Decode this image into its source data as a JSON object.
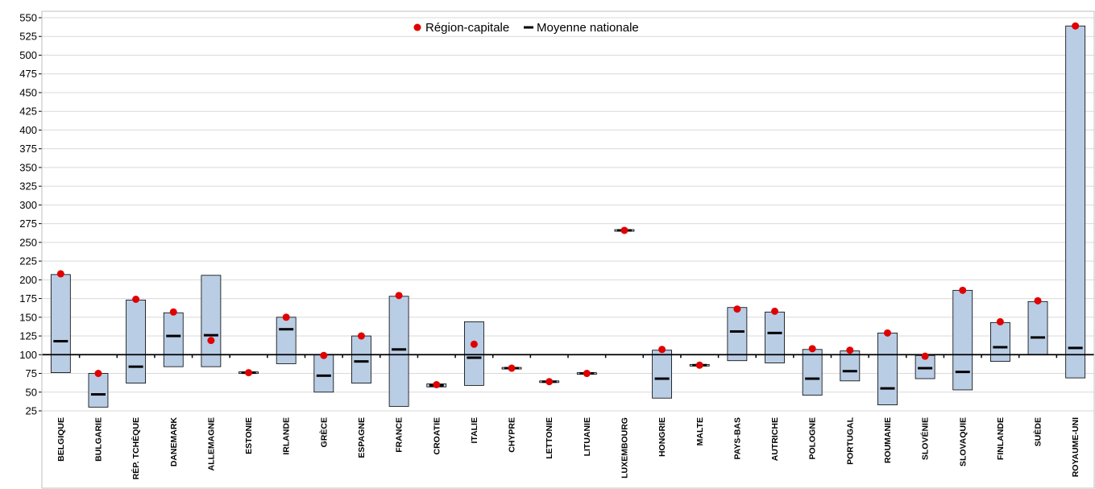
{
  "chart_data": {
    "type": "range",
    "title": "",
    "xlabel": "",
    "ylabel": "",
    "ylim": [
      25,
      550
    ],
    "ytick_step": 25,
    "reference_line": 100,
    "grid": true,
    "legend_position": "top-center",
    "colors": {
      "box_fill": "#b9cde5",
      "box_stroke": "#000000",
      "capital_point": "#e00000",
      "national_mean": "#000000",
      "grid": "#d9d9d9"
    },
    "legend": {
      "capital": "Région-capitale",
      "mean": "Moyenne nationale"
    },
    "categories": [
      "BELGIQUE",
      "BULGARIE",
      "RÉP. TCHÈQUE",
      "DANEMARK",
      "ALLEMAGNE",
      "ESTONIE",
      "IRLANDE",
      "GRÈCE",
      "ESPAGNE",
      "FRANCE",
      "CROATIE",
      "ITALIE",
      "CHYPRE",
      "LETTONIE",
      "LITUANIE",
      "LUXEMBOURG",
      "HONGRIE",
      "MALTE",
      "PAYS-BAS",
      "AUTRICHE",
      "POLOGNE",
      "PORTUGAL",
      "ROUMANIE",
      "SLOVÉNIE",
      "SLOVAQUIE",
      "FINLANDE",
      "SUÈDE",
      "ROYAUME-UNI"
    ],
    "series": [
      {
        "name": "Région-capitale",
        "values": [
          208,
          75,
          174,
          157,
          119,
          76,
          150,
          99,
          125,
          179,
          60,
          114,
          82,
          64,
          75,
          266,
          107,
          86,
          161,
          158,
          108,
          106,
          129,
          98,
          186,
          144,
          172,
          539
        ]
      },
      {
        "name": "Moyenne nationale",
        "values": [
          118,
          47,
          84,
          125,
          126,
          76,
          134,
          72,
          91,
          107,
          59,
          96,
          82,
          64,
          75,
          266,
          68,
          86,
          131,
          129,
          68,
          78,
          55,
          82,
          77,
          110,
          123,
          109
        ]
      }
    ],
    "range_min": [
      76,
      30,
      62,
      84,
      84,
      75,
      88,
      50,
      62,
      31,
      57,
      59,
      81,
      63,
      74,
      265,
      42,
      85,
      92,
      89,
      46,
      65,
      33,
      68,
      53,
      91,
      100,
      69
    ],
    "range_max": [
      207,
      75,
      173,
      156,
      206,
      77,
      150,
      100,
      125,
      178,
      61,
      144,
      83,
      65,
      76,
      267,
      106,
      87,
      163,
      157,
      107,
      105,
      129,
      99,
      186,
      143,
      171,
      539
    ]
  }
}
